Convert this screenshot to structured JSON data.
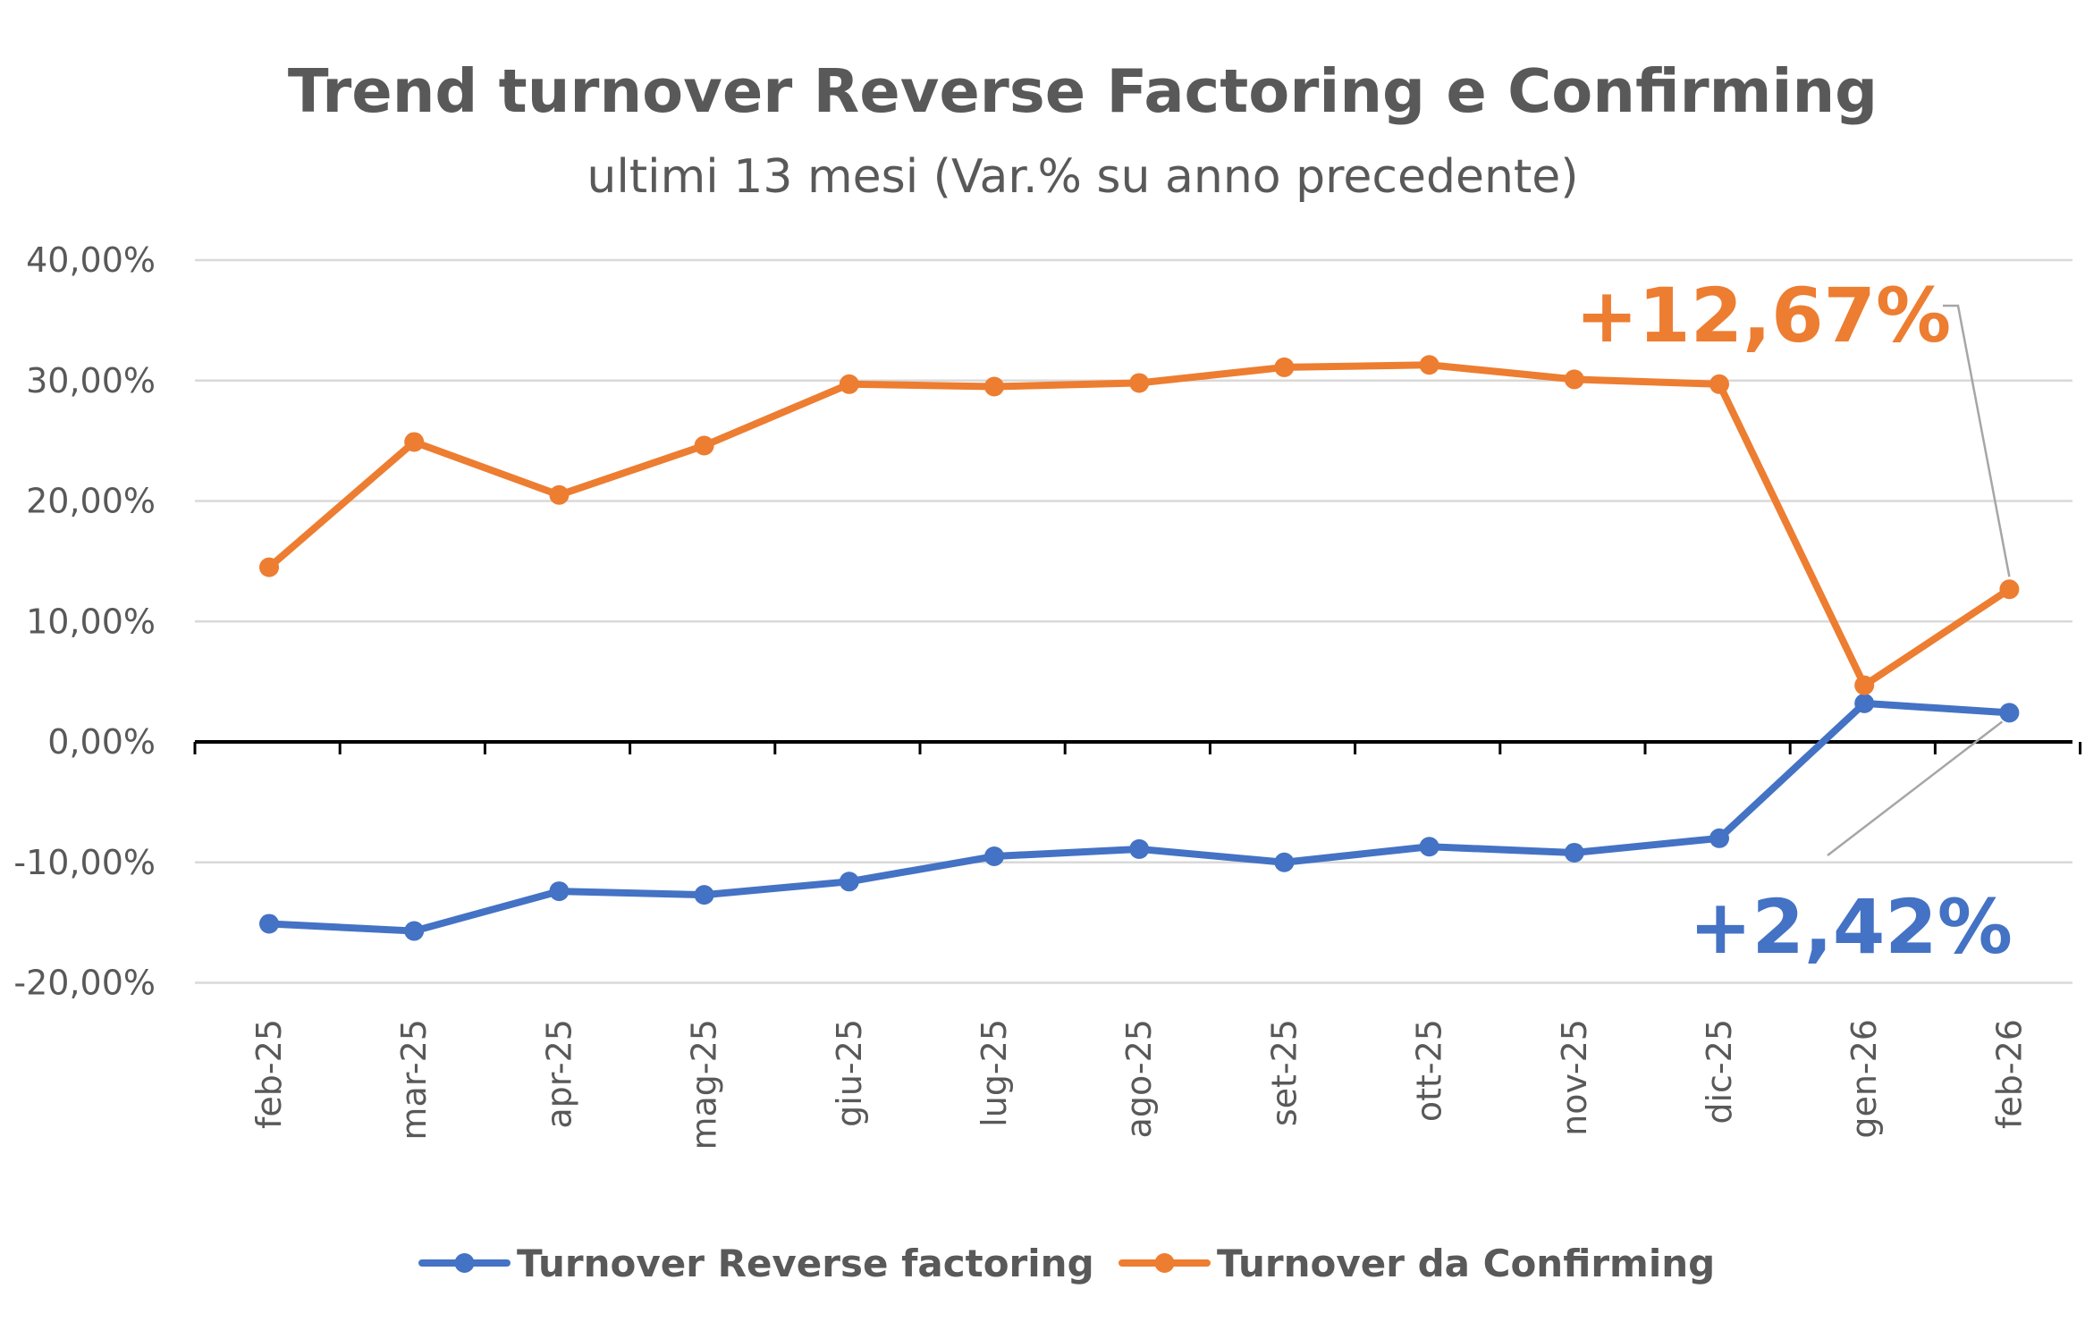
{
  "chart_data": {
    "type": "line",
    "title": "Trend turnover Reverse Factoring e Confirming",
    "subtitle": "ultimi 13 mesi (Var.% su anno precedente)",
    "xlabel": "",
    "ylabel": "",
    "categories": [
      "feb-25",
      "mar-25",
      "apr-25",
      "mag-25",
      "giu-25",
      "lug-25",
      "ago-25",
      "set-25",
      "ott-25",
      "nov-25",
      "dic-25",
      "gen-26",
      "feb-26"
    ],
    "y_ticks": [
      40,
      30,
      20,
      10,
      0,
      -10,
      -20
    ],
    "y_tick_labels": [
      "40,00%",
      "30,00%",
      "20,00%",
      "10,00%",
      "0,00%",
      "-10,00%",
      "-20,00%"
    ],
    "ylim": [
      -20,
      40
    ],
    "grid": true,
    "legend_position": "bottom",
    "series": [
      {
        "name": "Turnover Reverse factoring",
        "color": "#4472C4",
        "values": [
          -15.1,
          -15.7,
          -12.4,
          -12.7,
          -11.6,
          -9.5,
          -8.9,
          -10.0,
          -8.7,
          -9.2,
          -8.0,
          3.2,
          2.42
        ]
      },
      {
        "name": "Turnover da Confirming",
        "color": "#ED7D31",
        "values": [
          14.5,
          24.9,
          20.5,
          24.6,
          29.7,
          29.5,
          29.8,
          31.1,
          31.3,
          30.1,
          29.7,
          4.7,
          12.67
        ]
      }
    ],
    "annotations": [
      {
        "text": "+12,67%",
        "series": "Turnover da Confirming",
        "category": "feb-26",
        "color": "#ED7D31"
      },
      {
        "text": "+2,42%",
        "series": "Turnover Reverse factoring",
        "category": "feb-26",
        "color": "#4472C4"
      }
    ]
  }
}
